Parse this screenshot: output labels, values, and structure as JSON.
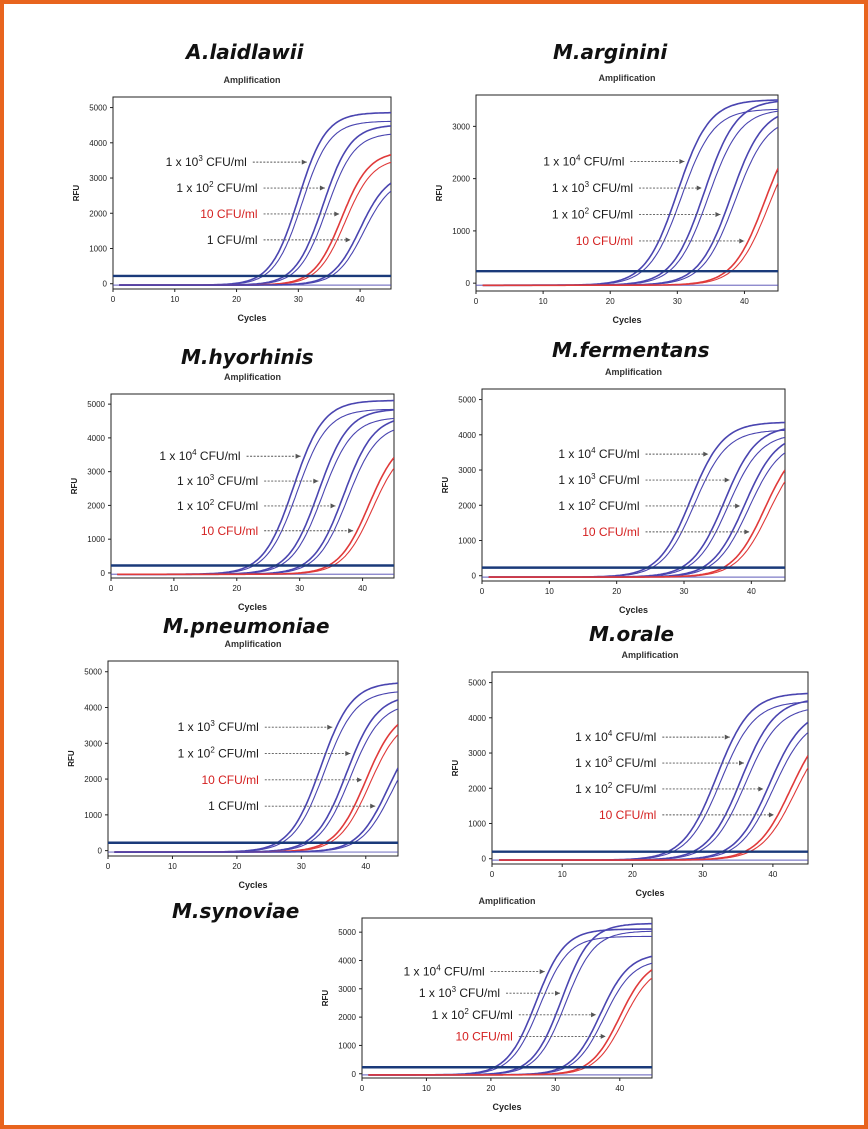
{
  "colors": {
    "frame": "#e8641e",
    "blue_curve": "#4a45b0",
    "red_curve": "#e03a3a",
    "threshold": "#1a3a7a",
    "label_black": "#1a1a1a",
    "label_red": "#d42020",
    "arrow": "#555555"
  },
  "chart_data": [
    {
      "type": "line",
      "species": "A.laidlawii",
      "title": "Amplification",
      "xlabel": "Cycles",
      "ylabel": "RFU",
      "xlim": [
        0,
        45
      ],
      "ylim": [
        -150,
        5300
      ],
      "xticks": [
        "0",
        "10",
        "20",
        "30",
        "40"
      ],
      "yticks": [
        "0",
        "1000",
        "2000",
        "3000",
        "4000",
        "5000"
      ],
      "threshold": 220,
      "series": [
        {
          "name": "1 x 10³ CFU/ml",
          "label_pre": "1 x 10",
          "label_sup": "3",
          "label_post": " CFU/ml",
          "red": false,
          "ct": 30,
          "max": 4900,
          "k": 0.45
        },
        {
          "name": "1 x 10² CFU/ml",
          "label_pre": "1 x 10",
          "label_sup": "2",
          "label_post": " CFU/ml",
          "red": false,
          "ct": 34,
          "max": 4550,
          "k": 0.45
        },
        {
          "name": "10 CFU/ml",
          "label_pre": "10 CFU/ml",
          "label_sup": "",
          "label_post": "",
          "red": true,
          "ct": 37,
          "max": 3800,
          "k": 0.45
        },
        {
          "name": "1 CFU/ml",
          "label_pre": "1 CFU/ml",
          "label_sup": "",
          "label_post": "",
          "red": false,
          "ct": 40,
          "max": 3200,
          "k": 0.45
        }
      ]
    },
    {
      "type": "line",
      "species": "M.arginini",
      "title": "Amplification",
      "xlabel": "Cycles",
      "ylabel": "RFU",
      "xlim": [
        0,
        45
      ],
      "ylim": [
        -150,
        3600
      ],
      "xticks": [
        "0",
        "10",
        "20",
        "30",
        "40"
      ],
      "yticks": [
        "0",
        "1000",
        "2000",
        "3000"
      ],
      "threshold": 230,
      "series": [
        {
          "name": "1 x 10⁴ CFU/ml",
          "label_pre": "1 x 10",
          "label_sup": "4",
          "label_post": " CFU/ml",
          "red": false,
          "ct": 30,
          "max": 3550,
          "k": 0.42
        },
        {
          "name": "1 x 10³ CFU/ml",
          "label_pre": "1 x 10",
          "label_sup": "3",
          "label_post": " CFU/ml",
          "red": false,
          "ct": 34,
          "max": 3550,
          "k": 0.42
        },
        {
          "name": "1 x 10² CFU/ml",
          "label_pre": "1 x 10",
          "label_sup": "2",
          "label_post": " CFU/ml",
          "red": false,
          "ct": 38,
          "max": 3400,
          "k": 0.42
        },
        {
          "name": "10 CFU/ml",
          "label_pre": "10 CFU/ml",
          "label_sup": "",
          "label_post": "",
          "red": true,
          "ct": 43,
          "max": 3200,
          "k": 0.42
        }
      ]
    },
    {
      "type": "line",
      "species": "M.hyorhinis",
      "title": "Amplification",
      "xlabel": "Cycles",
      "ylabel": "RFU",
      "xlim": [
        0,
        45
      ],
      "ylim": [
        -150,
        5300
      ],
      "xticks": [
        "0",
        "10",
        "20",
        "30",
        "40"
      ],
      "yticks": [
        "0",
        "1000",
        "2000",
        "3000",
        "4000",
        "5000"
      ],
      "threshold": 220,
      "series": [
        {
          "name": "1 x 10⁴ CFU/ml",
          "label_pre": "1 x 10",
          "label_sup": "4",
          "label_post": " CFU/ml",
          "red": false,
          "ct": 29,
          "max": 5150,
          "k": 0.42
        },
        {
          "name": "1 x 10³ CFU/ml",
          "label_pre": "1 x 10",
          "label_sup": "3",
          "label_post": " CFU/ml",
          "red": false,
          "ct": 33,
          "max": 4900,
          "k": 0.42
        },
        {
          "name": "1 x 10² CFU/ml",
          "label_pre": "1 x 10",
          "label_sup": "2",
          "label_post": " CFU/ml",
          "red": false,
          "ct": 37,
          "max": 4700,
          "k": 0.42
        },
        {
          "name": "10 CFU/ml",
          "label_pre": "10 CFU/ml",
          "label_sup": "",
          "label_post": "",
          "red": true,
          "ct": 41,
          "max": 4100,
          "k": 0.42
        }
      ]
    },
    {
      "type": "line",
      "species": "M.fermentans",
      "title": "Amplification",
      "xlabel": "Cycles",
      "ylabel": "RFU",
      "xlim": [
        0,
        45
      ],
      "ylim": [
        -150,
        5300
      ],
      "xticks": [
        "0",
        "10",
        "20",
        "30",
        "40"
      ],
      "yticks": [
        "0",
        "1000",
        "2000",
        "3000",
        "4000",
        "5000"
      ],
      "threshold": 230,
      "series": [
        {
          "name": "1 x 10⁴ CFU/ml",
          "label_pre": "1 x 10",
          "label_sup": "4",
          "label_post": " CFU/ml",
          "red": false,
          "ct": 31,
          "max": 4400,
          "k": 0.42
        },
        {
          "name": "1 x 10³ CFU/ml",
          "label_pre": "1 x 10",
          "label_sup": "3",
          "label_post": " CFU/ml",
          "red": false,
          "ct": 36,
          "max": 4300,
          "k": 0.42
        },
        {
          "name": "1 x 10² CFU/ml",
          "label_pre": "1 x 10",
          "label_sup": "2",
          "label_post": " CFU/ml",
          "red": false,
          "ct": 39,
          "max": 4100,
          "k": 0.42
        },
        {
          "name": "10 CFU/ml",
          "label_pre": "10 CFU/ml",
          "label_sup": "",
          "label_post": "",
          "red": true,
          "ct": 42,
          "max": 3900,
          "k": 0.42
        }
      ]
    },
    {
      "type": "line",
      "species": "M.pneumoniae",
      "title": "Amplification",
      "xlabel": "Cycles",
      "ylabel": "RFU",
      "xlim": [
        0,
        45
      ],
      "ylim": [
        -150,
        5300
      ],
      "xticks": [
        "0",
        "10",
        "20",
        "30",
        "40"
      ],
      "yticks": [
        "0",
        "1000",
        "2000",
        "3000",
        "4000",
        "5000"
      ],
      "threshold": 220,
      "series": [
        {
          "name": "1 x 10³ CFU/ml",
          "label_pre": "1 x 10",
          "label_sup": "3",
          "label_post": " CFU/ml",
          "red": false,
          "ct": 33,
          "max": 4750,
          "k": 0.42
        },
        {
          "name": "1 x 10² CFU/ml",
          "label_pre": "1 x 10",
          "label_sup": "2",
          "label_post": " CFU/ml",
          "red": false,
          "ct": 37,
          "max": 4400,
          "k": 0.42
        },
        {
          "name": "10 CFU/ml",
          "label_pre": "10 CFU/ml",
          "label_sup": "",
          "label_post": "",
          "red": true,
          "ct": 40,
          "max": 4000,
          "k": 0.42
        },
        {
          "name": "1 CFU/ml",
          "label_pre": "1 CFU/ml",
          "label_sup": "",
          "label_post": "",
          "red": false,
          "ct": 43.5,
          "max": 3600,
          "k": 0.42
        }
      ]
    },
    {
      "type": "line",
      "species": "M.orale",
      "title": "Amplification",
      "xlabel": "Cycles",
      "ylabel": "RFU",
      "xlim": [
        0,
        45
      ],
      "ylim": [
        -150,
        5300
      ],
      "xticks": [
        "0",
        "10",
        "20",
        "30",
        "40"
      ],
      "yticks": [
        "0",
        "1000",
        "2000",
        "3000",
        "4000",
        "5000"
      ],
      "threshold": 200,
      "series": [
        {
          "name": "1 x 10⁴ CFU/ml",
          "label_pre": "1 x 10",
          "label_sup": "4",
          "label_post": " CFU/ml",
          "red": false,
          "ct": 32,
          "max": 4750,
          "k": 0.42
        },
        {
          "name": "1 x 10³ CFU/ml",
          "label_pre": "1 x 10",
          "label_sup": "3",
          "label_post": " CFU/ml",
          "red": false,
          "ct": 35.5,
          "max": 4600,
          "k": 0.42
        },
        {
          "name": "1 x 10² CFU/ml",
          "label_pre": "1 x 10",
          "label_sup": "2",
          "label_post": " CFU/ml",
          "red": false,
          "ct": 39.5,
          "max": 4300,
          "k": 0.42
        },
        {
          "name": "10 CFU/ml",
          "label_pre": "10 CFU/ml",
          "label_sup": "",
          "label_post": "",
          "red": true,
          "ct": 42.5,
          "max": 4000,
          "k": 0.42
        }
      ]
    },
    {
      "type": "line",
      "species": "M.synoviae",
      "title": "Amplification",
      "xlabel": "Cycles",
      "ylabel": "RFU",
      "xlim": [
        0,
        45
      ],
      "ylim": [
        -150,
        5500
      ],
      "xticks": [
        "0",
        "10",
        "20",
        "30",
        "40"
      ],
      "yticks": [
        "0",
        "1000",
        "2000",
        "3000",
        "4000",
        "5000"
      ],
      "threshold": 230,
      "series": [
        {
          "name": "1 x 10⁴ CFU/ml",
          "label_pre": "1 x 10",
          "label_sup": "4",
          "label_post": " CFU/ml",
          "red": false,
          "ct": 27,
          "max": 5150,
          "k": 0.45
        },
        {
          "name": "1 x 10³ CFU/ml",
          "label_pre": "1 x 10",
          "label_sup": "3",
          "label_post": " CFU/ml",
          "red": false,
          "ct": 31,
          "max": 5350,
          "k": 0.45
        },
        {
          "name": "1 x 10² CFU/ml",
          "label_pre": "1 x 10",
          "label_sup": "2",
          "label_post": " CFU/ml",
          "red": false,
          "ct": 37,
          "max": 4300,
          "k": 0.45
        },
        {
          "name": "10 CFU/ml",
          "label_pre": "10 CFU/ml",
          "label_sup": "",
          "label_post": "",
          "red": true,
          "ct": 40,
          "max": 4100,
          "k": 0.45
        }
      ]
    }
  ]
}
